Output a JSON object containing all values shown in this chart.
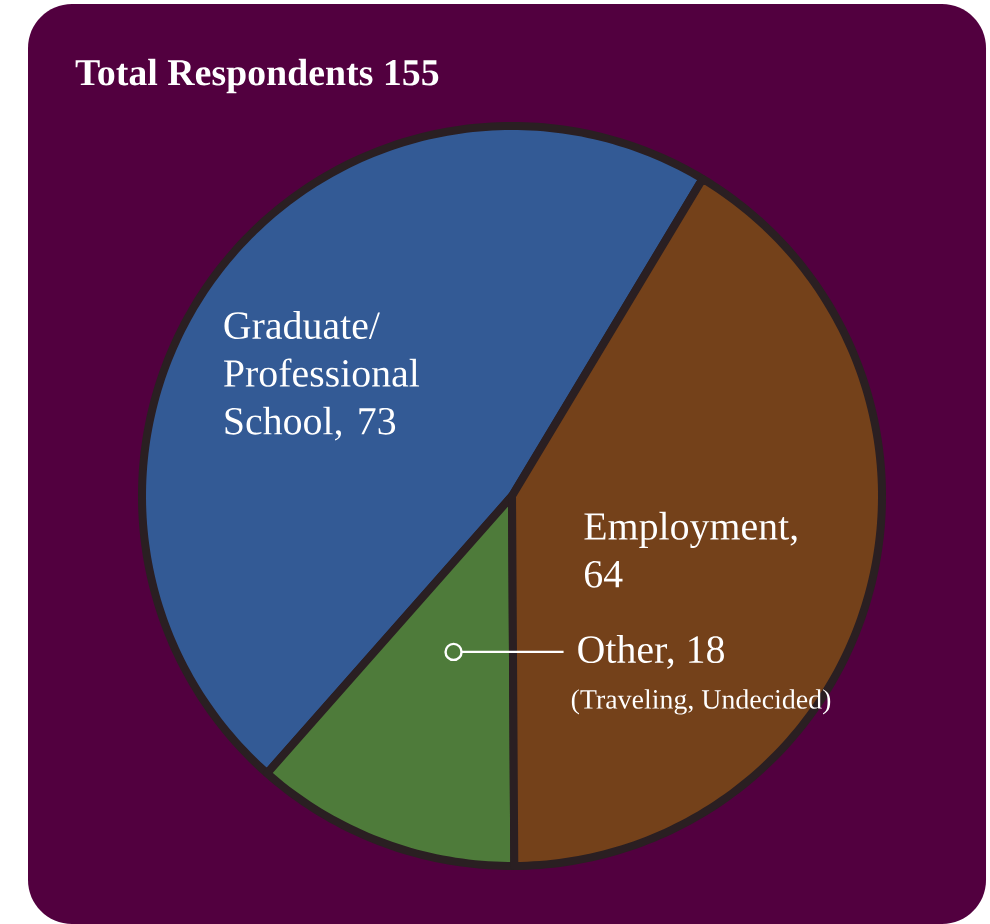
{
  "chart_data": {
    "type": "pie",
    "title": "Total Respondents 155",
    "categories": [
      "Graduate/ Professional School, 73",
      "Other, 18",
      "Employment, 64"
    ],
    "values": [
      73,
      18,
      64
    ],
    "colors": [
      "#335a95",
      "#4e7b3a",
      "#74411a"
    ],
    "annotations": [
      "(Traveling, Undecided)"
    ]
  }
}
